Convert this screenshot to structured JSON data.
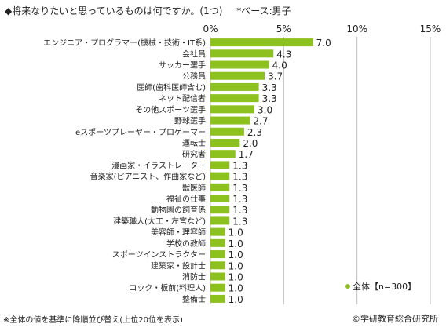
{
  "header": {
    "question": "◆将来なりたいと思っているものは何ですか。(1つ)",
    "base": "*ベース:男子"
  },
  "footer": {
    "note": "※全体の値を基準に降順並び替え(上位20位を表示)",
    "copyright": "©学研教育総合研究所"
  },
  "chart_data": {
    "type": "bar",
    "orientation": "horizontal",
    "xlim": [
      0,
      15
    ],
    "xticks": [
      0,
      5,
      10,
      15
    ],
    "xtick_labels": [
      "0%",
      "5%",
      "10%",
      "15%"
    ],
    "grid": true,
    "legend_position": "bottom-right",
    "bar_color": "#8cc11f",
    "series": [
      {
        "name": "全体【n=300】",
        "values": [
          7.0,
          4.3,
          4.0,
          3.7,
          3.3,
          3.3,
          3.0,
          2.7,
          2.3,
          2.0,
          1.7,
          1.3,
          1.3,
          1.3,
          1.3,
          1.3,
          1.3,
          1.0,
          1.0,
          1.0,
          1.0,
          1.0,
          1.0,
          1.0
        ],
        "value_labels": [
          "7.0",
          "4.3",
          "4.0",
          "3.7",
          "3.3",
          "3.3",
          "3.0",
          "2.7",
          "2.3",
          "2.0",
          "1.7",
          "1.3",
          "1.3",
          "1.3",
          "1.3",
          "1.3",
          "1.3",
          "1.0",
          "1.0",
          "1.0",
          "1.0",
          "1.0",
          "1.0",
          "1.0"
        ]
      }
    ],
    "categories": [
      "エンジニア・プログラマー(機械・技術・IT系)",
      "会社員",
      "サッカー選手",
      "公務員",
      "医師(歯科医師含む)",
      "ネット配信者",
      "その他スポーツ選手",
      "野球選手",
      "eスポーツプレーヤー・プロゲーマー",
      "運転士",
      "研究者",
      "漫画家・イラストレーター",
      "音楽家(ピアニスト、作曲家など)",
      "獣医師",
      "福祉の仕事",
      "動物園の飼育係",
      "建築職人(大工・左官など)",
      "美容師・理容師",
      "学校の教師",
      "スポーツインストラクター",
      "建築家・設計士",
      "消防士",
      "コック・板前(料理人)",
      "整備士"
    ]
  }
}
